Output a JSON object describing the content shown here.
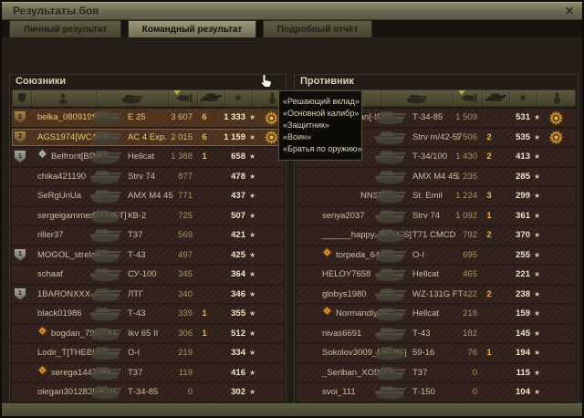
{
  "window": {
    "title": "Результаты боя",
    "close_glyph": "✕"
  },
  "tabs": [
    {
      "label": "Личный результат",
      "active": false
    },
    {
      "label": "Командный результат",
      "active": true
    },
    {
      "label": "Подробный отчёт",
      "active": false
    }
  ],
  "sort": {
    "column": "damage",
    "order": "desc"
  },
  "colors": {
    "highlight_text": "#ecca7d",
    "kills": "#e2b94f",
    "header_olive": "#554f39",
    "medal_gold": "#d79e35"
  },
  "columns": [
    "platoon",
    "player",
    "vehicle",
    "damage",
    "kills",
    "experience",
    "medals"
  ],
  "tooltip": {
    "lines": [
      "«Решающий вклад»",
      "«Основной калибр»",
      "«Защитник»",
      "«Воин»",
      "«Братья по оружию»"
    ]
  },
  "panels": {
    "allies": {
      "title": "Союзники",
      "rows": [
        {
          "badge": "2",
          "badge_tone": "bronze",
          "name": "belka_08091987",
          "tank": "E 25",
          "dmg": "3 607",
          "kills": "6",
          "xp": "1 333",
          "medal": true,
          "highlight": true
        },
        {
          "badge": "2",
          "badge_tone": "bronze",
          "name": "AGS1974[WCAT1]",
          "tank": "AC 4 Exp.",
          "dmg": "2 015",
          "kills": "6",
          "xp": "1 159",
          "medal": true,
          "highlight": true,
          "self": true
        },
        {
          "badge": "1",
          "badge_tone": "silver",
          "clan": "gray",
          "name": "Belfront[BRIK]",
          "tank": "Hellcat",
          "dmg": "1 388",
          "kills": "1",
          "xp": "658"
        },
        {
          "name": "chika421190",
          "tank": "Strv 74",
          "dmg": "877",
          "kills": "",
          "xp": "478"
        },
        {
          "name": "SeRgUnUa",
          "tank": "AMX M4 45",
          "dmg": "771",
          "kills": "",
          "xp": "437"
        },
        {
          "name": "sergeigammer[TEOST]",
          "tank": "КВ-2",
          "dmg": "725",
          "kills": "",
          "xp": "507"
        },
        {
          "name": "riller37",
          "tank": "Т37",
          "dmg": "569",
          "kills": "",
          "xp": "421"
        },
        {
          "badge": "1",
          "badge_tone": "silver",
          "name": "MOGOL_strelok",
          "tank": "Т-43",
          "dmg": "497",
          "kills": "",
          "xp": "425"
        },
        {
          "name": "schaaf",
          "tank": "СУ-100",
          "dmg": "345",
          "kills": "",
          "xp": "364"
        },
        {
          "badge": "1",
          "badge_tone": "silver",
          "name": "1BARONXXX",
          "tank": "ЛТГ",
          "dmg": "340",
          "kills": "",
          "xp": "346"
        },
        {
          "name": "black01986",
          "tank": "Т-43",
          "dmg": "339",
          "kills": "1",
          "xp": "355"
        },
        {
          "clan": "orange",
          "name": "bogdan_79[T--K]",
          "tank": "Ikv 65 II",
          "dmg": "306",
          "kills": "1",
          "xp": "512"
        },
        {
          "name": "Lodir_T[THEBL]",
          "tank": "O-I",
          "dmg": "219",
          "kills": "",
          "xp": "334"
        },
        {
          "clan": "orange",
          "name": "serega1447985",
          "tank": "Т37",
          "dmg": "119",
          "kills": "",
          "xp": "416"
        },
        {
          "name": "olegan301283[45-B]",
          "tank": "Т-34-85",
          "dmg": "0",
          "kills": "",
          "xp": "302"
        }
      ]
    },
    "enemies": {
      "title": "Противник",
      "rows": [
        {
          "name": "schustrakan[-IF]",
          "tank": "Т-34-85",
          "dmg": "1 509",
          "kills": "",
          "xp": "531",
          "medal": true
        },
        {
          "name": "",
          "tank": "Strv m/42-57",
          "dmg": "1 506",
          "kills": "2",
          "xp": "535",
          "medal": true
        },
        {
          "name": "",
          "tank": "Т-34/100",
          "dmg": "1 430",
          "kills": "2",
          "xp": "413"
        },
        {
          "name": "",
          "tank": "AMX M4 45",
          "dmg": "1 235",
          "kills": "",
          "xp": "285"
        },
        {
          "name": "NNS]",
          "name_tail": true,
          "tank": "St. Emil",
          "dmg": "1 224",
          "kills": "3",
          "xp": "299"
        },
        {
          "name": "senya2037",
          "tank": "Strv 74",
          "dmg": "1 092",
          "kills": "1",
          "xp": "361"
        },
        {
          "name": "______happy..[N_D_S]",
          "tank": "T71 CMCD",
          "dmg": "792",
          "kills": "2",
          "xp": "370"
        },
        {
          "clan": "orange",
          "name": "torpeda_641",
          "tank": "O-I",
          "dmg": "695",
          "kills": "",
          "xp": "255"
        },
        {
          "name": "HELOY7658",
          "tank": "Hellcat",
          "dmg": "465",
          "kills": "",
          "xp": "221"
        },
        {
          "name": "globys1980",
          "tank": "WZ-131G FT",
          "dmg": "422",
          "kills": "2",
          "xp": "238"
        },
        {
          "clan": "orange",
          "name": "Normandiy71",
          "tank": "Hellcat",
          "dmg": "219",
          "kills": "",
          "xp": "159"
        },
        {
          "name": "nivas6691",
          "tank": "Т-43",
          "dmg": "182",
          "kills": "",
          "xp": "145"
        },
        {
          "name": "Sokolov3009_[-N_W-]",
          "tank": "59-16",
          "dmg": "76",
          "kills": "1",
          "xp": "194"
        },
        {
          "name": "_Seriban_XOPOJI_",
          "tank": "Т37",
          "dmg": "0",
          "kills": "",
          "xp": "115"
        },
        {
          "name": "svoi_111",
          "tank": "Т-150",
          "dmg": "0",
          "kills": "",
          "xp": "104"
        }
      ]
    }
  }
}
